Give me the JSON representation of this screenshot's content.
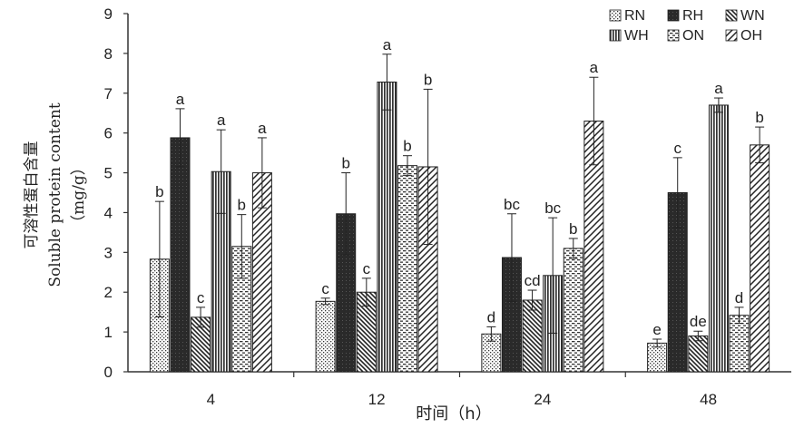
{
  "chart_data": {
    "type": "bar",
    "xlabel": "时间（h）",
    "ylabel_lines": [
      "可溶性蛋白含量",
      "Soluble protein content",
      "（mg/g）"
    ],
    "ylim": [
      0,
      9
    ],
    "yticks": [
      0,
      1,
      2,
      3,
      4,
      5,
      6,
      7,
      8,
      9
    ],
    "categories": [
      "4",
      "12",
      "24",
      "48"
    ],
    "legend_position": "top-right",
    "series": [
      {
        "name": "RN",
        "pattern": "dots",
        "values": [
          2.83,
          1.77,
          0.95,
          0.72
        ],
        "errors": [
          1.45,
          0.08,
          0.18,
          0.1
        ],
        "letters": [
          "b",
          "c",
          "d",
          "e"
        ]
      },
      {
        "name": "RH",
        "pattern": "solid-dark",
        "values": [
          5.88,
          3.97,
          2.87,
          4.5
        ],
        "errors": [
          0.73,
          1.03,
          1.1,
          0.88
        ],
        "letters": [
          "a",
          "b",
          "bc",
          "c"
        ]
      },
      {
        "name": "WN",
        "pattern": "diag-down",
        "values": [
          1.37,
          2.0,
          1.8,
          0.9
        ],
        "errors": [
          0.25,
          0.35,
          0.25,
          0.12
        ],
        "letters": [
          "c",
          "c",
          "cd",
          "de"
        ]
      },
      {
        "name": "WH",
        "pattern": "vertical",
        "values": [
          5.03,
          7.28,
          2.42,
          6.7
        ],
        "errors": [
          1.05,
          0.7,
          1.45,
          0.18
        ],
        "letters": [
          "a",
          "a",
          "bc",
          "a"
        ]
      },
      {
        "name": "ON",
        "pattern": "dashes",
        "values": [
          3.15,
          5.18,
          3.1,
          1.42
        ],
        "errors": [
          0.8,
          0.25,
          0.25,
          0.2
        ],
        "letters": [
          "b",
          "b",
          "b",
          "d"
        ]
      },
      {
        "name": "OH",
        "pattern": "diag-up",
        "values": [
          5.0,
          5.15,
          6.3,
          5.7
        ],
        "errors": [
          0.88,
          1.95,
          1.1,
          0.45
        ],
        "letters": [
          "a",
          "b",
          "a",
          "b"
        ]
      }
    ]
  }
}
